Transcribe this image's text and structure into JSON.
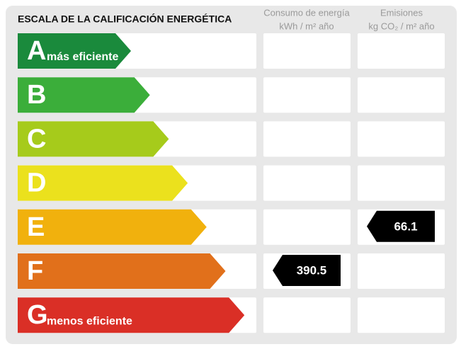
{
  "title": "ESCALA DE LA CALIFICACIÓN ENERGÉTICA",
  "columns": [
    {
      "line1": "Consumo de energía",
      "line2": "kWh / m² año"
    },
    {
      "line1": "Emisiones",
      "line2": "kg CO₂ / m² año"
    }
  ],
  "rows": [
    {
      "letter": "A",
      "label": "más eficiente",
      "color": "#1a8a3c",
      "consumption": null,
      "emissions": null
    },
    {
      "letter": "B",
      "color": "#3bae3a",
      "consumption": null,
      "emissions": null
    },
    {
      "letter": "C",
      "color": "#a6cb1b",
      "consumption": null,
      "emissions": null
    },
    {
      "letter": "D",
      "color": "#ebe11d",
      "consumption": null,
      "emissions": null
    },
    {
      "letter": "E",
      "color": "#f1b10d",
      "consumption": null,
      "emissions": 66.1
    },
    {
      "letter": "F",
      "color": "#e1701b",
      "consumption": 390.5,
      "emissions": null
    },
    {
      "letter": "G",
      "label": "menos eficiente",
      "color": "#da2f26",
      "consumption": null,
      "emissions": null
    }
  ]
}
